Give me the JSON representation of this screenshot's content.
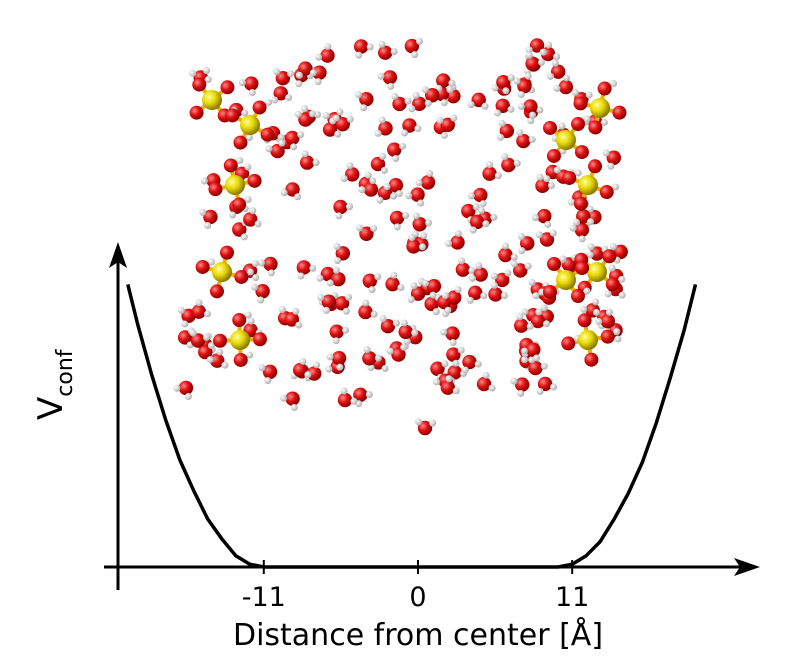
{
  "chart_data": {
    "type": "line",
    "xlabel": "Distance from center [Å]",
    "ylabel": "V",
    "ylabel_subscript": "conf",
    "x": [
      -20.7,
      -20,
      -19,
      -18,
      -17,
      -16,
      -15,
      -14,
      -13,
      -12,
      -11,
      0,
      10,
      11,
      12,
      13,
      14,
      15,
      16,
      17,
      18,
      19,
      19.8
    ],
    "series": [
      {
        "color": "#000000",
        "values": [
          1.0,
          0.86,
          0.68,
          0.52,
          0.38,
          0.27,
          0.17,
          0.1,
          0.04,
          0.01,
          0,
          0,
          0,
          0.01,
          0.04,
          0.09,
          0.17,
          0.26,
          0.37,
          0.51,
          0.67,
          0.84,
          1.0
        ]
      }
    ],
    "xlim": [
      -22.4,
      24.4
    ],
    "ylim": [
      0,
      1.15
    ],
    "xticks": [
      -11,
      0,
      11
    ]
  }
}
